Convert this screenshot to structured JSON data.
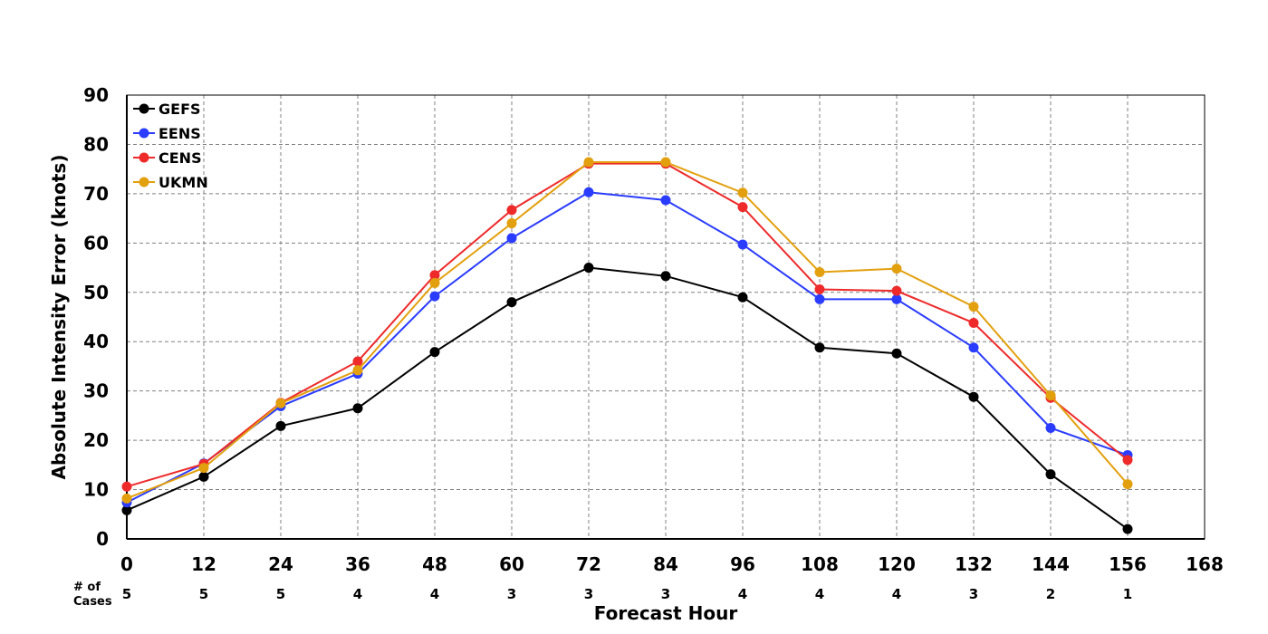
{
  "chart_data": {
    "type": "line",
    "xlabel": "Forecast Hour",
    "ylabel": "Absolute Intensity Error (knots)",
    "xlim": [
      0,
      168
    ],
    "ylim": [
      0,
      90
    ],
    "x_ticks": [
      "0",
      "12",
      "24",
      "36",
      "48",
      "60",
      "72",
      "84",
      "96",
      "108",
      "120",
      "132",
      "144",
      "156",
      "168"
    ],
    "y_ticks": [
      "0",
      "10",
      "20",
      "30",
      "40",
      "50",
      "60",
      "70",
      "80",
      "90"
    ],
    "grid": true,
    "legend_position": "top-left",
    "cases_label": [
      "# of",
      "Cases"
    ],
    "cases": [
      "5",
      "5",
      "5",
      "4",
      "4",
      "3",
      "3",
      "3",
      "4",
      "4",
      "4",
      "3",
      "2",
      "1"
    ],
    "x": [
      0,
      12,
      24,
      36,
      48,
      60,
      72,
      84,
      96,
      108,
      120,
      132,
      144,
      156
    ],
    "series": [
      {
        "name": "GEFS",
        "color": "#000000",
        "values": [
          5.8,
          12.6,
          22.9,
          26.5,
          37.9,
          48.0,
          55.0,
          53.3,
          49.0,
          38.8,
          37.6,
          28.8,
          13.1,
          2.0
        ]
      },
      {
        "name": "EENS",
        "color": "#2a3cff",
        "values": [
          7.4,
          15.3,
          26.9,
          33.5,
          49.2,
          61.0,
          70.3,
          68.7,
          59.7,
          48.6,
          48.6,
          38.8,
          22.5,
          17.0
        ]
      },
      {
        "name": "CENS",
        "color": "#ee2a2a",
        "values": [
          10.6,
          15.2,
          27.6,
          36.0,
          53.5,
          66.7,
          76.1,
          76.1,
          67.3,
          50.6,
          50.3,
          43.8,
          28.6,
          16.0
        ]
      },
      {
        "name": "UKMN",
        "color": "#e3a00e",
        "values": [
          8.2,
          14.4,
          27.5,
          34.2,
          51.9,
          64.0,
          76.4,
          76.4,
          70.2,
          54.1,
          54.8,
          47.1,
          29.1,
          11.1
        ]
      }
    ]
  }
}
